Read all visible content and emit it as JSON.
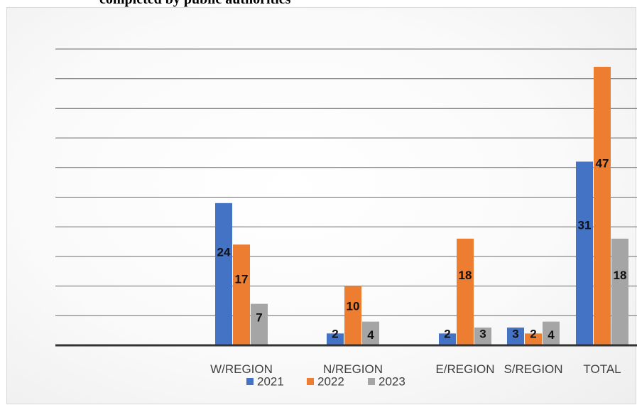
{
  "page": {
    "title": "completed by public authorities"
  },
  "chart_data": {
    "type": "bar",
    "title": "completed by public authorities",
    "categories": [
      "",
      "W/REGION",
      "N/REGION",
      "E/REGION",
      "S/REGION",
      "TOTAL"
    ],
    "series": [
      {
        "name": "2021",
        "values": [
          null,
          24,
          2,
          2,
          3,
          31
        ],
        "color": "#4472C4"
      },
      {
        "name": "2022",
        "values": [
          null,
          17,
          10,
          18,
          2,
          47
        ],
        "color": "#ED7D31"
      },
      {
        "name": "2023",
        "values": [
          null,
          7,
          4,
          3,
          4,
          18
        ],
        "color": "#A5A5A5"
      }
    ],
    "ylim": [
      0,
      50
    ],
    "grid": true,
    "legend": "bottom"
  }
}
